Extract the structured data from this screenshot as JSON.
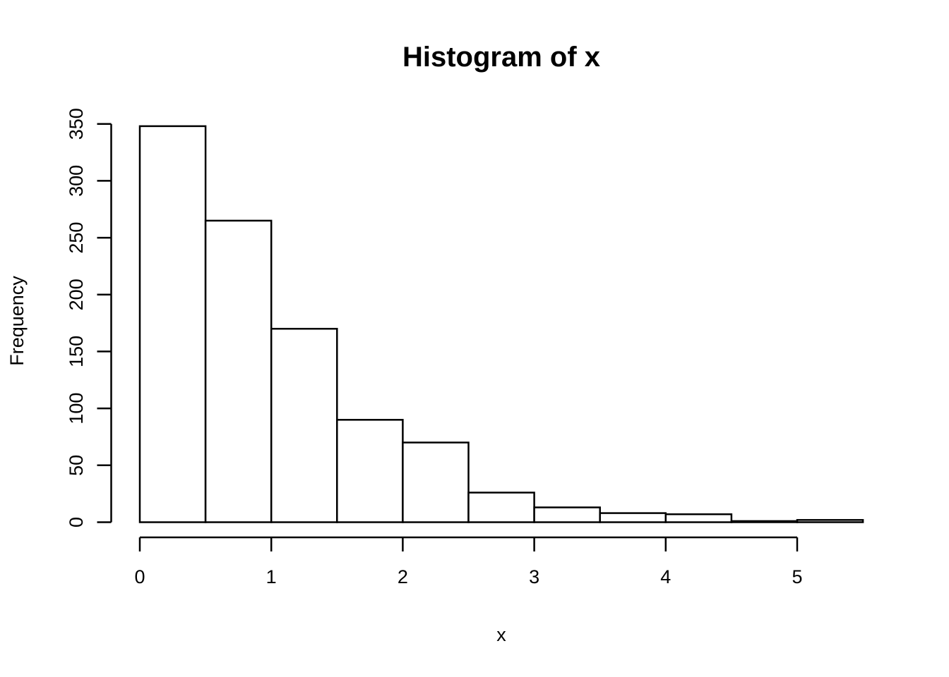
{
  "chart_data": {
    "type": "bar",
    "subtype": "histogram",
    "title": "Histogram of x",
    "xlabel": "x",
    "ylabel": "Frequency",
    "breaks": [
      0,
      0.5,
      1,
      1.5,
      2,
      2.5,
      3,
      3.5,
      4,
      4.5,
      5,
      5.5
    ],
    "counts": [
      348,
      265,
      170,
      90,
      70,
      26,
      13,
      8,
      7,
      1,
      2
    ],
    "x_ticks": [
      0,
      1,
      2,
      3,
      4,
      5
    ],
    "y_ticks": [
      0,
      50,
      100,
      150,
      200,
      250,
      300,
      350
    ],
    "xlim": [
      0,
      5.5
    ],
    "ylim": [
      0,
      350
    ],
    "grid": false,
    "legend": false,
    "bar_fill": "#ffffff",
    "bar_stroke": "#000000",
    "axis_color": "#000000",
    "background": "#ffffff"
  }
}
